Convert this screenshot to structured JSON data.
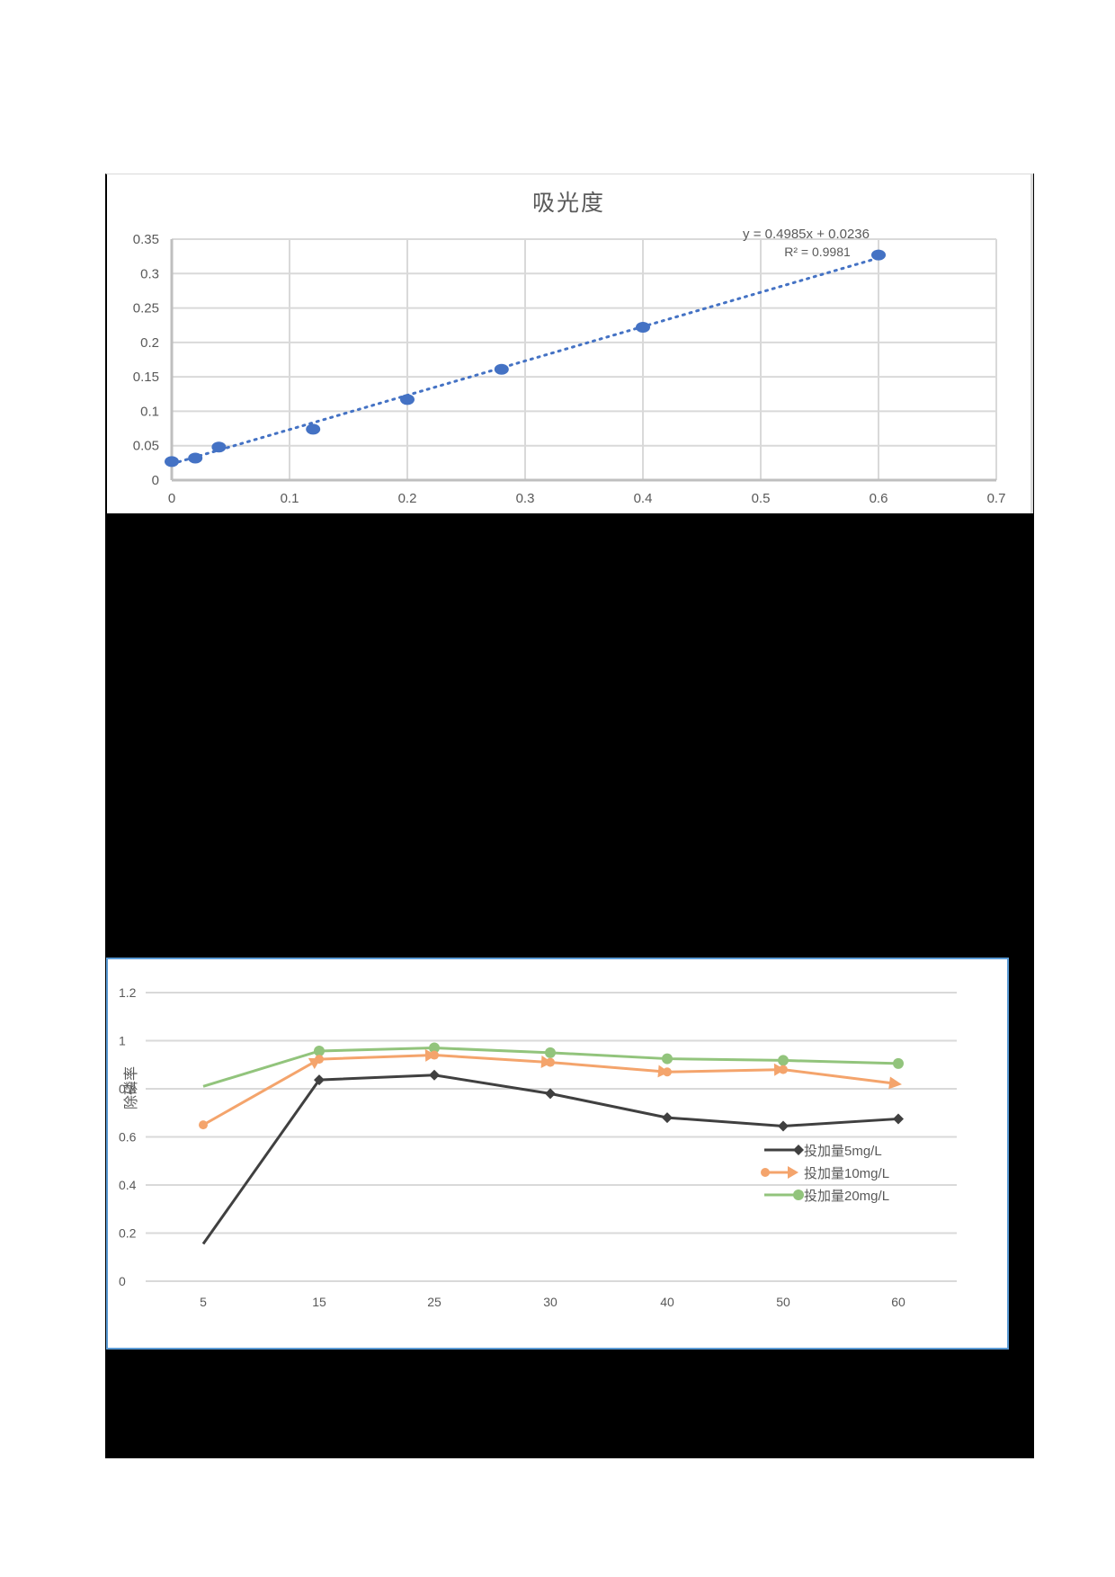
{
  "page": {
    "background": "#ffffff",
    "redaction_color": "#000000"
  },
  "chart_data": [
    {
      "type": "scatter",
      "title": "吸光度",
      "xlabel": "",
      "ylabel": "",
      "xlim": [
        0,
        0.7
      ],
      "ylim": [
        0,
        0.35
      ],
      "x_ticks": [
        "0",
        "0.1",
        "0.2",
        "0.3",
        "0.4",
        "0.5",
        "0.6",
        "0.7"
      ],
      "y_ticks": [
        "0",
        "0.05",
        "0.1",
        "0.15",
        "0.2",
        "0.25",
        "0.3",
        "0.35"
      ],
      "grid": true,
      "series": [
        {
          "name": "吸光度",
          "color": "#4472c4",
          "x": [
            0,
            0.02,
            0.04,
            0.12,
            0.2,
            0.28,
            0.4,
            0.6
          ],
          "y": [
            0.027,
            0.032,
            0.048,
            0.074,
            0.117,
            0.161,
            0.222,
            0.327
          ]
        }
      ],
      "trendline": {
        "type": "linear",
        "style": "dotted",
        "color": "#4472c4",
        "slope": 0.4985,
        "intercept": 0.0236,
        "equation": "y = 0.4985x + 0.0236",
        "r_squared": "R² = 0.9981"
      }
    },
    {
      "type": "line",
      "title": "",
      "xlabel": "",
      "ylabel": "除磷率",
      "categories": [
        "5",
        "15",
        "25",
        "30",
        "40",
        "50",
        "60"
      ],
      "ylim": [
        0,
        1.2
      ],
      "y_ticks": [
        "0",
        "0.2",
        "0.4",
        "0.6",
        "0.8",
        "1",
        "1.2"
      ],
      "grid": true,
      "legend_position": "right",
      "series": [
        {
          "name": "投加量5mg/L",
          "color": "#404040",
          "marker": "diamond",
          "values": [
            0.155,
            0.837,
            0.857,
            0.78,
            0.68,
            0.645,
            0.675
          ]
        },
        {
          "name": "投加量10mg/L",
          "color": "#f4a46c",
          "marker": "arrow",
          "values": [
            0.65,
            0.923,
            0.94,
            0.91,
            0.87,
            0.88,
            0.82
          ]
        },
        {
          "name": "投加量20mg/L",
          "color": "#92c47c",
          "marker": "circle",
          "values": [
            0.81,
            0.957,
            0.97,
            0.95,
            0.925,
            0.918,
            0.905
          ]
        }
      ]
    }
  ]
}
